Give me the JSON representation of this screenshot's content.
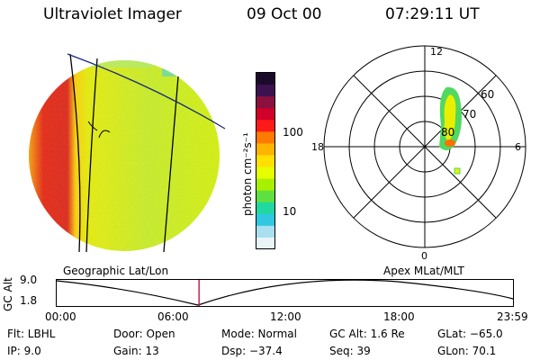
{
  "header": {
    "instrument": "Ultraviolet Imager",
    "date": "09 Oct 00",
    "time": "07:29:11 UT"
  },
  "colorbar": {
    "label": "photon cm⁻²s⁻¹",
    "ticks": [
      "100",
      "10"
    ],
    "colors": [
      "#1a0a2a",
      "#3d1050",
      "#8a1040",
      "#d0002a",
      "#ff1a1a",
      "#ff7a00",
      "#ffb400",
      "#ffe000",
      "#e6ff00",
      "#a8f000",
      "#60e040",
      "#20d8a0",
      "#30c8e0",
      "#a8e0f0",
      "#e8f4f8"
    ]
  },
  "polar": {
    "clock_labels": {
      "top": "12",
      "right": "6",
      "bottom": "0",
      "left": "18"
    },
    "lat_labels": [
      "60",
      "70",
      "80"
    ]
  },
  "panel_labels": {
    "left": "Geographic Lat/Lon",
    "right": "Apex MLat/MLT"
  },
  "altitude_plot": {
    "axis_label": "GC Alt",
    "y_ticks": [
      "9.0",
      "1.8"
    ],
    "x_ticks": [
      "00:00",
      "06:00",
      "12:00",
      "18:00",
      "23:59"
    ],
    "marker_color": "#c0143c",
    "marker_time_hours": 7.486
  },
  "info": {
    "flt": "Flt: LBHL",
    "ip": "IP:  9.0",
    "door": "Door: Open",
    "gain": "Gain: 13",
    "mode": "Mode: Normal",
    "dsp": "Dsp:  −37.4",
    "gcalt": "GC Alt: 1.6 Re",
    "seq": "Seq: 39",
    "glat": "GLat: −65.0",
    "glon": "GLon: 70.1"
  }
}
